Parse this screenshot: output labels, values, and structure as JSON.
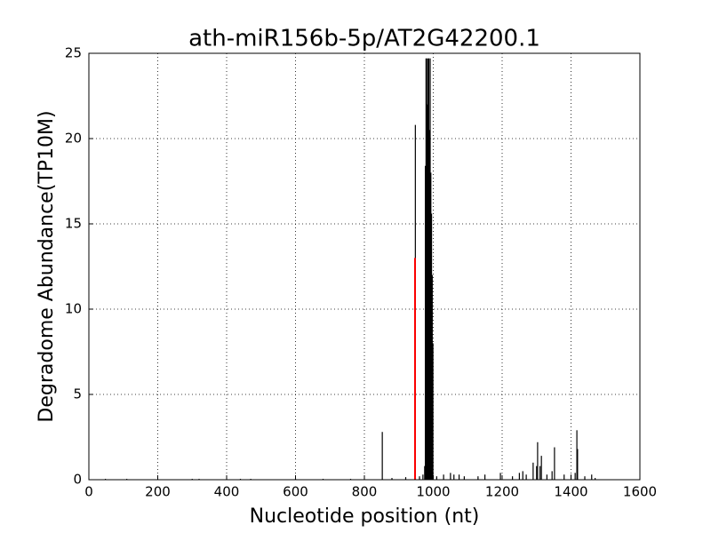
{
  "chart_data": {
    "type": "stem",
    "title": "ath-miR156b-5p/AT2G42200.1",
    "xlabel": "Nucleotide position (nt)",
    "ylabel": "Degradome Abundance(TP10M)",
    "xlim": [
      0,
      1600
    ],
    "xticks": [
      0,
      200,
      400,
      600,
      800,
      1000,
      1200,
      1400,
      1600
    ],
    "ylim": [
      0,
      25
    ],
    "yticks": [
      0,
      5,
      10,
      15,
      20,
      25
    ],
    "grid": true,
    "series": [
      {
        "color": "#000000",
        "x": [
          48,
          110,
          300,
          320,
          440,
          470,
          600,
          680,
          760,
          852,
          880,
          920,
          948,
          960,
          970,
          975,
          977,
          979,
          981,
          983,
          985,
          987,
          989,
          991,
          993,
          995,
          997,
          999,
          1010,
          1030,
          1050,
          1060,
          1075,
          1090,
          1130,
          1150,
          1195,
          1230,
          1250,
          1260,
          1270,
          1290,
          1300,
          1303,
          1310,
          1314,
          1330,
          1345,
          1352,
          1380,
          1400,
          1412,
          1417,
          1419,
          1440,
          1460,
          1470
        ],
        "values": [
          0.05,
          0.05,
          0.05,
          0.05,
          0.05,
          0.05,
          0.05,
          0.05,
          0.05,
          2.8,
          0.1,
          0.15,
          20.8,
          0.2,
          0.3,
          0.8,
          18.4,
          24.7,
          24.7,
          22.0,
          24.7,
          24.7,
          20.5,
          24.7,
          18.0,
          15.6,
          12.0,
          8.0,
          0.2,
          0.3,
          0.4,
          0.3,
          0.3,
          0.2,
          0.2,
          0.3,
          0.4,
          0.2,
          0.4,
          0.5,
          0.3,
          1.0,
          0.8,
          2.2,
          0.8,
          1.4,
          0.3,
          0.5,
          1.9,
          0.3,
          0.3,
          0.4,
          2.9,
          1.8,
          0.2,
          0.3,
          0.1
        ]
      },
      {
        "color": "#ff0000",
        "x": [
          947
        ],
        "values": [
          13.0
        ]
      }
    ]
  }
}
